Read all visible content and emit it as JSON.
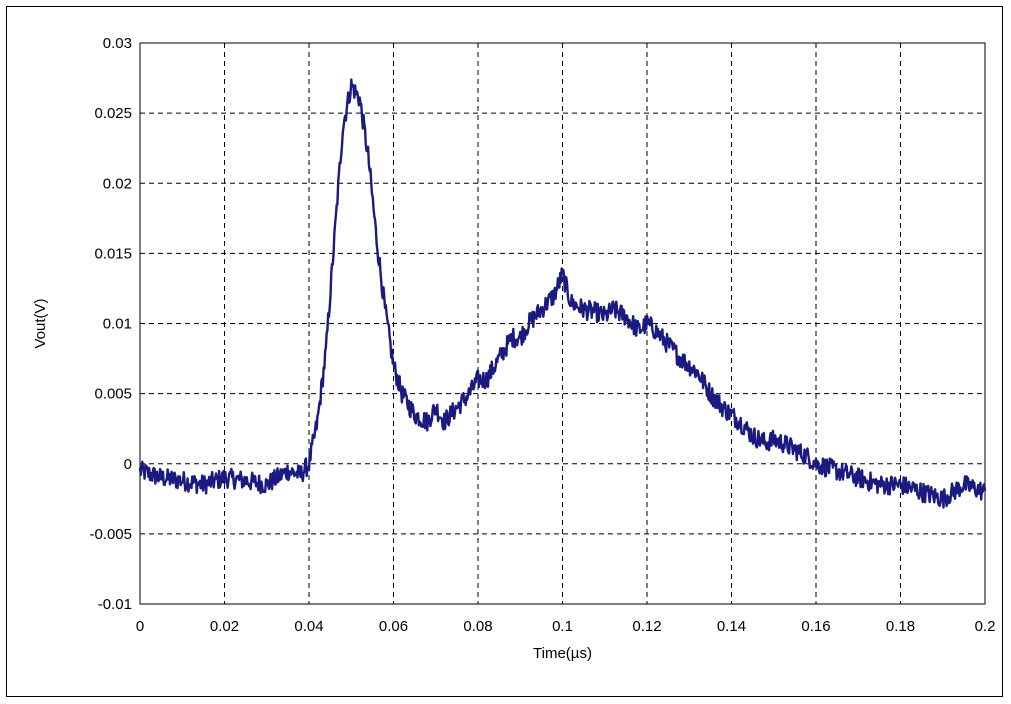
{
  "chart_data": {
    "type": "line",
    "title": "",
    "xlabel": "Time(µs)",
    "ylabel": "Vout(V)",
    "xlim": [
      0,
      0.2
    ],
    "ylim": [
      -0.01,
      0.03
    ],
    "x_ticks": [
      0,
      0.02,
      0.04,
      0.06,
      0.08,
      0.1,
      0.12,
      0.14,
      0.16,
      0.18,
      0.2
    ],
    "x_tick_labels": [
      "0",
      "0.02",
      "0.04",
      "0.06",
      "0.08",
      "0.1",
      "0.12",
      "0.14",
      "0.16",
      "0.18",
      "0.2"
    ],
    "y_ticks": [
      -0.01,
      -0.005,
      0,
      0.005,
      0.01,
      0.015,
      0.02,
      0.025,
      0.03
    ],
    "y_tick_labels": [
      "-0.01",
      "-0.005",
      "0",
      "0.005",
      "0.01",
      "0.015",
      "0.02",
      "0.025",
      "0.03"
    ],
    "grid": true,
    "grid_style": "dashed",
    "legend": "none",
    "series": [
      {
        "color": "#1a1a80",
        "x": [
          0,
          0.005,
          0.01,
          0.015,
          0.02,
          0.025,
          0.03,
          0.035,
          0.038,
          0.04,
          0.042,
          0.044,
          0.046,
          0.048,
          0.05,
          0.052,
          0.054,
          0.056,
          0.058,
          0.06,
          0.062,
          0.065,
          0.068,
          0.07,
          0.072,
          0.075,
          0.078,
          0.08,
          0.082,
          0.085,
          0.088,
          0.09,
          0.092,
          0.095,
          0.098,
          0.1,
          0.102,
          0.105,
          0.108,
          0.11,
          0.112,
          0.115,
          0.118,
          0.12,
          0.122,
          0.125,
          0.128,
          0.13,
          0.132,
          0.135,
          0.138,
          0.14,
          0.142,
          0.145,
          0.148,
          0.15,
          0.152,
          0.155,
          0.158,
          0.16,
          0.165,
          0.17,
          0.175,
          0.18,
          0.185,
          0.19,
          0.195,
          0.2
        ],
        "y": [
          -0.0005,
          -0.001,
          -0.0012,
          -0.0015,
          -0.001,
          -0.0012,
          -0.0015,
          -0.0005,
          -0.0008,
          0.0,
          0.003,
          0.008,
          0.016,
          0.024,
          0.027,
          0.026,
          0.022,
          0.016,
          0.011,
          0.007,
          0.005,
          0.0035,
          0.003,
          0.004,
          0.003,
          0.004,
          0.005,
          0.006,
          0.006,
          0.0075,
          0.009,
          0.009,
          0.01,
          0.011,
          0.012,
          0.0135,
          0.0115,
          0.011,
          0.0108,
          0.0105,
          0.011,
          0.0105,
          0.0095,
          0.01,
          0.0095,
          0.0085,
          0.0075,
          0.007,
          0.0065,
          0.005,
          0.004,
          0.0035,
          0.003,
          0.002,
          0.0015,
          0.0017,
          0.0015,
          0.001,
          0.0005,
          0.0,
          -0.0005,
          -0.001,
          -0.0015,
          -0.0015,
          -0.002,
          -0.0025,
          -0.0015,
          -0.002
        ]
      }
    ]
  }
}
